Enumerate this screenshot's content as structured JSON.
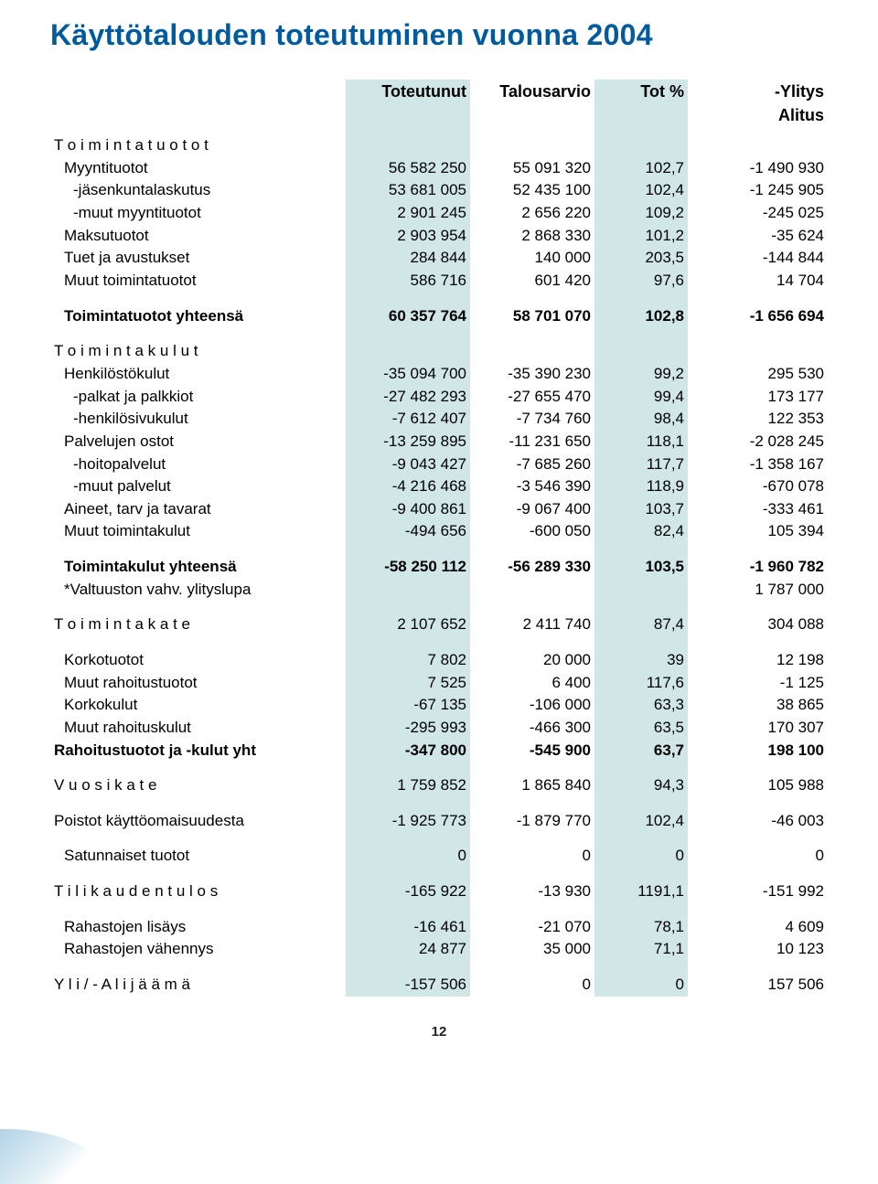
{
  "page": {
    "title": "Käyttötalouden toteutuminen vuonna 2004",
    "pagenum": "12",
    "colors": {
      "heading": "#005a9e",
      "shade_bg": "#d1e6e7",
      "text": "#000000",
      "page_bg": "#ffffff"
    },
    "typography": {
      "heading_fontsize_pt": 24,
      "body_fontsize_pt": 12,
      "font_family": "Verdana"
    }
  },
  "table": {
    "type": "table",
    "columns": [
      "",
      "Toteutunut",
      "Talousarvio",
      "Tot %",
      "-Ylitys"
    ],
    "alitus_label": "Alitus",
    "column_align": [
      "left",
      "right",
      "right",
      "right",
      "right"
    ],
    "column_widths_pct": [
      38,
      16,
      16,
      12,
      18
    ],
    "rows": [
      {
        "label": "T o i m i n t a t u o t o t",
        "style": "spaced",
        "indent": 0,
        "cells": [
          "",
          "",
          "",
          ""
        ],
        "sep_before": 0
      },
      {
        "label": "Myyntituotot",
        "indent": 1,
        "cells": [
          "56 582 250",
          "55 091 320",
          "102,7",
          "-1 490 930"
        ]
      },
      {
        "label": "-jäsenkuntalaskutus",
        "indent": 2,
        "cells": [
          "53 681 005",
          "52 435 100",
          "102,4",
          "-1 245 905"
        ]
      },
      {
        "label": "-muut myyntituotot",
        "indent": 2,
        "cells": [
          "2 901 245",
          "2 656 220",
          "109,2",
          "-245 025"
        ]
      },
      {
        "label": "Maksutuotot",
        "indent": 1,
        "cells": [
          "2 903 954",
          "2 868 330",
          "101,2",
          "-35 624"
        ]
      },
      {
        "label": "Tuet ja avustukset",
        "indent": 1,
        "cells": [
          "284 844",
          "140 000",
          "203,5",
          "-144 844"
        ]
      },
      {
        "label": "Muut toimintatuotot",
        "indent": 1,
        "cells": [
          "586 716",
          "601 420",
          "97,6",
          "14 704"
        ]
      },
      {
        "label": "Toimintatuotot yhteensä",
        "bold": true,
        "indent": 1,
        "cells": [
          "60 357 764",
          "58 701 070",
          "102,8",
          "-1 656 694"
        ],
        "sep_before": 1,
        "sep_after": 1
      },
      {
        "label": "T o i m i n t a k u l u t",
        "style": "spaced",
        "indent": 0,
        "cells": [
          "",
          "",
          "",
          ""
        ]
      },
      {
        "label": "Henkilöstökulut",
        "indent": 1,
        "cells": [
          "-35 094 700",
          "-35 390 230",
          "99,2",
          "295 530"
        ]
      },
      {
        "label": "-palkat ja palkkiot",
        "indent": 2,
        "cells": [
          "-27 482 293",
          "-27 655 470",
          "99,4",
          "173 177"
        ]
      },
      {
        "label": "-henkilösivukulut",
        "indent": 2,
        "cells": [
          "-7 612 407",
          "-7 734 760",
          "98,4",
          "122 353"
        ]
      },
      {
        "label": "Palvelujen ostot",
        "indent": 1,
        "cells": [
          "-13 259 895",
          "-11 231 650",
          "118,1",
          "-2 028 245"
        ]
      },
      {
        "label": "-hoitopalvelut",
        "indent": 2,
        "cells": [
          "-9 043 427",
          "-7 685 260",
          "117,7",
          "-1 358 167"
        ]
      },
      {
        "label": "-muut palvelut",
        "indent": 2,
        "cells": [
          "-4 216 468",
          "-3 546 390",
          "118,9",
          "-670 078"
        ]
      },
      {
        "label": "Aineet, tarv ja tavarat",
        "indent": 1,
        "cells": [
          "-9 400 861",
          "-9 067 400",
          "103,7",
          "-333 461"
        ]
      },
      {
        "label": "Muut toimintakulut",
        "indent": 1,
        "cells": [
          "-494 656",
          "-600 050",
          "82,4",
          "105 394"
        ]
      },
      {
        "label": "Toimintakulut yhteensä",
        "bold": true,
        "indent": 1,
        "cells": [
          "-58 250 112",
          "-56 289 330",
          "103,5",
          "-1 960 782"
        ],
        "sep_before": 1
      },
      {
        "label": "*Valtuuston vahv. ylityslupa",
        "indent": 1,
        "cells": [
          "",
          "",
          "",
          "1 787 000"
        ]
      },
      {
        "label": "T o i m i n t a k a t e",
        "style": "spaced",
        "indent": 0,
        "cells": [
          "2 107 652",
          "2 411 740",
          "87,4",
          "304 088"
        ],
        "sep_before": 1,
        "sep_after": 1
      },
      {
        "label": "Korkotuotot",
        "indent": 1,
        "cells": [
          "7 802",
          "20 000",
          "39",
          "12 198"
        ]
      },
      {
        "label": "Muut rahoitustuotot",
        "indent": 1,
        "cells": [
          "7 525",
          "6 400",
          "117,6",
          "-1 125"
        ]
      },
      {
        "label": "Korkokulut",
        "indent": 1,
        "cells": [
          "-67 135",
          "-106 000",
          "63,3",
          "38 865"
        ]
      },
      {
        "label": "Muut rahoituskulut",
        "indent": 1,
        "cells": [
          "-295 993",
          "-466 300",
          "63,5",
          "170 307"
        ]
      },
      {
        "label": "Rahoitustuotot ja -kulut yht",
        "bold": true,
        "indent": 0,
        "cells": [
          "-347 800",
          "-545 900",
          "63,7",
          "198 100"
        ]
      },
      {
        "label": "V u o s i k a t e",
        "style": "spaced",
        "indent": 0,
        "cells": [
          "1 759 852",
          "1 865 840",
          "94,3",
          "105 988"
        ],
        "sep_before": 1,
        "sep_after": 1
      },
      {
        "label": "Poistot käyttöomaisuudesta",
        "indent": 0,
        "cells": [
          "-1 925 773",
          "-1 879 770",
          "102,4",
          "-46 003"
        ]
      },
      {
        "label": "Satunnaiset tuotot",
        "indent": 1,
        "cells": [
          "0",
          "0",
          "0",
          "0"
        ],
        "sep_before": 1,
        "sep_after": 1
      },
      {
        "label": "T i l i k a u d e n  t u l o s",
        "style": "spaced",
        "indent": 0,
        "cells": [
          "-165 922",
          "-13 930",
          "1191,1",
          "-151 992"
        ],
        "sep_after": 1
      },
      {
        "label": "Rahastojen lisäys",
        "indent": 1,
        "cells": [
          "-16 461",
          "-21 070",
          "78,1",
          "4 609"
        ]
      },
      {
        "label": "Rahastojen vähennys",
        "indent": 1,
        "cells": [
          "24 877",
          "35 000",
          "71,1",
          "10 123"
        ]
      },
      {
        "label": "Y l i / - A l i j ä ä m ä",
        "style": "spaced",
        "indent": 0,
        "cells": [
          "-157 506",
          "0",
          "0",
          "157 506"
        ],
        "sep_before": 1
      }
    ]
  }
}
